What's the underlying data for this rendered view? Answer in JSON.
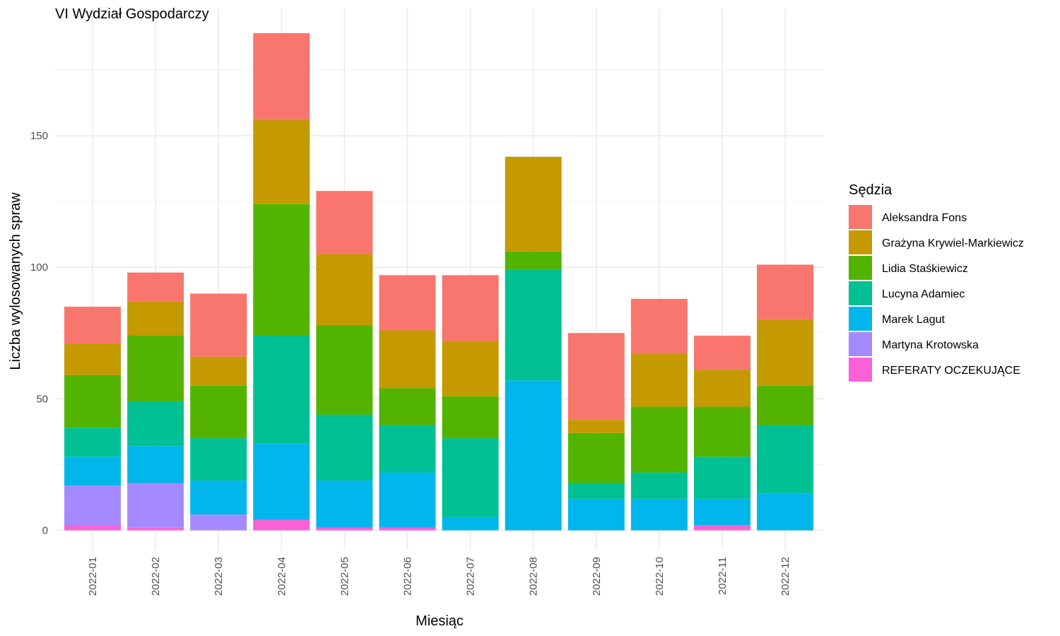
{
  "chart_data": {
    "type": "bar",
    "stacked": true,
    "title": "VI Wydział Gospodarczy",
    "xlabel": "Miesiąc",
    "ylabel": "Liczba wylosowanych spraw",
    "ylim": [
      0,
      190
    ],
    "yticks": [
      0,
      50,
      100,
      150
    ],
    "grid": true,
    "legend_title": "Sędzia",
    "legend_position": "right",
    "categories": [
      "2022-01",
      "2022-02",
      "2022-03",
      "2022-04",
      "2022-05",
      "2022-06",
      "2022-07",
      "2022-08",
      "2022-09",
      "2022-10",
      "2022-11",
      "2022-12"
    ],
    "series": [
      {
        "name": "Aleksandra Fons",
        "color": "#F8766D",
        "values": [
          14,
          11,
          24,
          33,
          24,
          21,
          25,
          0,
          33,
          21,
          13,
          21
        ]
      },
      {
        "name": "Grażyna Krywiel-Markiewicz",
        "color": "#C49A00",
        "values": [
          12,
          13,
          11,
          32,
          27,
          22,
          21,
          36,
          5,
          20,
          14,
          25
        ]
      },
      {
        "name": "Lidia Staśkiewicz",
        "color": "#53B400",
        "values": [
          20,
          25,
          20,
          50,
          34,
          14,
          16,
          7,
          19,
          25,
          19,
          15
        ]
      },
      {
        "name": "Lucyna Adamiec",
        "color": "#00C094",
        "values": [
          11,
          17,
          16,
          41,
          25,
          18,
          30,
          42,
          6,
          10,
          16,
          26
        ]
      },
      {
        "name": "Marek Lagut",
        "color": "#00B6EB",
        "values": [
          11,
          14,
          13,
          29,
          18,
          21,
          5,
          57,
          12,
          12,
          10,
          14
        ]
      },
      {
        "name": "Martyna Krotowska",
        "color": "#A58AFF",
        "values": [
          15,
          17,
          6,
          0,
          0,
          0,
          0,
          0,
          0,
          0,
          0,
          0
        ]
      },
      {
        "name": "REFERATY OCZEKUJĄCE",
        "color": "#FB61D7",
        "values": [
          2,
          1,
          0,
          4,
          1,
          1,
          0,
          0,
          0,
          0,
          2,
          0
        ]
      }
    ]
  }
}
